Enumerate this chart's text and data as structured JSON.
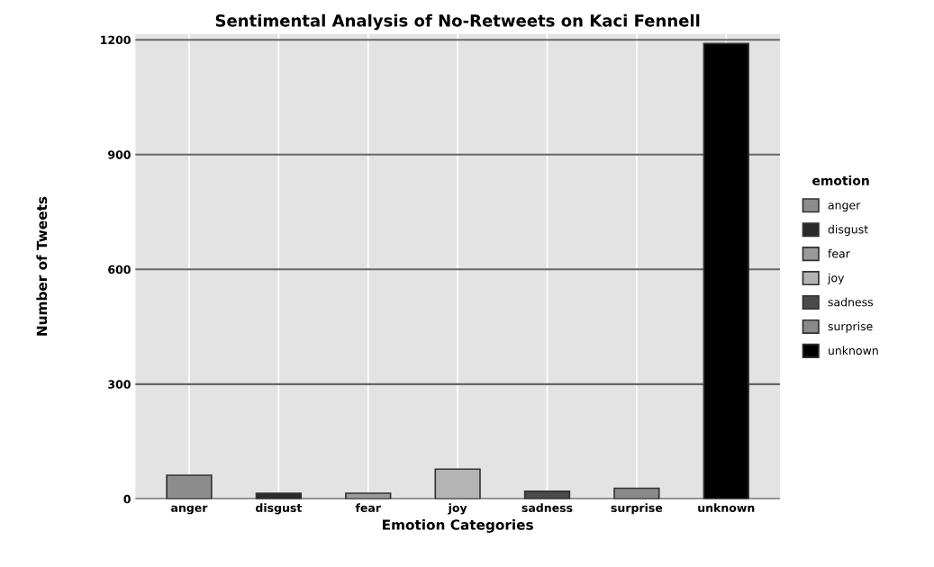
{
  "chart_data": {
    "type": "bar",
    "title": "Sentimental Analysis of No-Retweets on Kaci Fennell",
    "xlabel": "Emotion Categories",
    "ylabel": "Number of Tweets",
    "legend_title": "emotion",
    "categories": [
      "anger",
      "disgust",
      "fear",
      "joy",
      "sadness",
      "surprise",
      "unknown"
    ],
    "series": [
      {
        "name": "anger",
        "color": "#8c8c8c",
        "values": [
          62,
          null,
          null,
          null,
          null,
          null,
          null
        ]
      },
      {
        "name": "disgust",
        "color": "#2a2a2a",
        "values": [
          null,
          15,
          null,
          null,
          null,
          null,
          null
        ]
      },
      {
        "name": "fear",
        "color": "#9a9a9a",
        "values": [
          null,
          null,
          15,
          null,
          null,
          null,
          null
        ]
      },
      {
        "name": "joy",
        "color": "#b4b4b4",
        "values": [
          null,
          null,
          null,
          78,
          null,
          null,
          null
        ]
      },
      {
        "name": "sadness",
        "color": "#4a4a4a",
        "values": [
          null,
          null,
          null,
          null,
          20,
          null,
          null
        ]
      },
      {
        "name": "surprise",
        "color": "#8a8a8a",
        "values": [
          null,
          null,
          null,
          null,
          null,
          28,
          null
        ]
      },
      {
        "name": "unknown",
        "color": "#000000",
        "values": [
          null,
          null,
          null,
          null,
          null,
          null,
          1190
        ]
      }
    ],
    "ylim": [
      0,
      1215
    ],
    "yticks": [
      0,
      300,
      600,
      900,
      1200
    ],
    "grid": true,
    "legend": "right"
  }
}
